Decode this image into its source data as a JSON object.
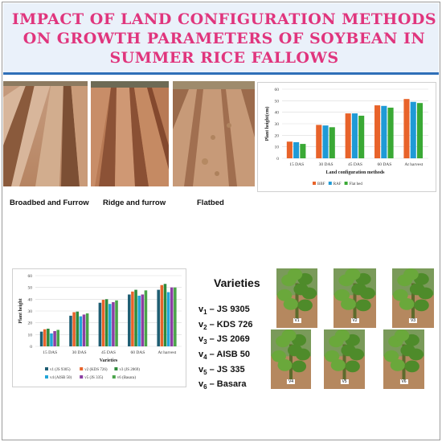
{
  "title": "IMPACT OF LAND CONFIGURATION METHODS ON GROWTH PARAMETERS OF SOYBEAN IN SUMMER RICE FALLOWS",
  "photos": [
    {
      "label": "Broadbed and Furrow",
      "icon": "broadbed-furrow-field-photo"
    },
    {
      "label": "Ridge and furrow",
      "icon": "ridge-furrow-field-photo"
    },
    {
      "label": "Flatbed",
      "icon": "flatbed-field-photo"
    }
  ],
  "varieties_title": "Varieties",
  "varieties": [
    {
      "sym": "v",
      "sub": "1",
      "name": " – JS 9305"
    },
    {
      "sym": "v",
      "sub": "2",
      "name": " – KDS 726"
    },
    {
      "sym": "v",
      "sub": "3",
      "name": " – JS 2069"
    },
    {
      "sym": "v",
      "sub": "4",
      "name": " – AISB 50"
    },
    {
      "sym": "v",
      "sub": "5",
      "name": " – JS 335"
    },
    {
      "sym": "v",
      "sub": "6",
      "name": " – Basara"
    }
  ],
  "plant_tags": [
    "V1",
    "V2",
    "V3",
    "V4",
    "V5",
    "V6"
  ],
  "chart_data": [
    {
      "type": "bar",
      "categories": [
        "15 DAS",
        "30 DAS",
        "45 DAS",
        "60 DAS",
        "At harvest"
      ],
      "xlabel": "Land configuration methods",
      "ylabel": "Plant height(cm)",
      "ylim": [
        0,
        60
      ],
      "yticks": [
        0,
        10,
        20,
        30,
        40,
        50,
        60
      ],
      "grid": true,
      "legend": "bottom",
      "series": [
        {
          "name": "BBF",
          "color": "#e8632a",
          "values": [
            14.5,
            29,
            39,
            46,
            51.5
          ]
        },
        {
          "name": "RAF",
          "color": "#1f9ad6",
          "values": [
            14,
            28.5,
            39,
            45.5,
            49
          ]
        },
        {
          "name": "Flat bed",
          "color": "#3aa935",
          "values": [
            12.5,
            27,
            37,
            44,
            48
          ]
        }
      ]
    },
    {
      "type": "bar",
      "categories": [
        "15 DAS",
        "30 DAS",
        "45 DAS",
        "60 DAS",
        "At harvest"
      ],
      "xlabel": "Varieties",
      "ylabel": "Plant height",
      "ylim": [
        0,
        60
      ],
      "yticks": [
        0,
        10,
        20,
        30,
        40,
        50,
        60
      ],
      "grid": true,
      "legend": "bottom",
      "series": [
        {
          "name": "v1 (JS 9305)",
          "color": "#1f5e73",
          "values": [
            12.5,
            26,
            37,
            44,
            48
          ]
        },
        {
          "name": "v2 (KDS 726)",
          "color": "#e8632a",
          "values": [
            14.5,
            29,
            39.5,
            46.5,
            52
          ]
        },
        {
          "name": "v3 (JS 2069)",
          "color": "#2f8a3c",
          "values": [
            15,
            29.5,
            40,
            48,
            53
          ]
        },
        {
          "name": "v4 (AISB 50)",
          "color": "#21a5d8",
          "values": [
            11,
            25.5,
            36,
            43,
            46
          ]
        },
        {
          "name": "v5 (JS 335)",
          "color": "#8b3fa3",
          "values": [
            13,
            27,
            37.5,
            44,
            50
          ]
        },
        {
          "name": "v6 (Basara)",
          "color": "#4aa44a",
          "values": [
            14,
            28,
            39,
            47.5,
            50
          ]
        }
      ]
    }
  ]
}
